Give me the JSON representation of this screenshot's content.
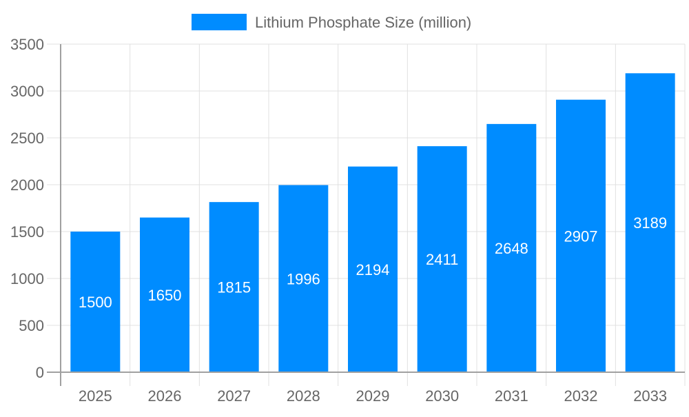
{
  "chart_data": {
    "type": "bar",
    "title": "",
    "xlabel": "",
    "ylabel": "",
    "categories": [
      "2025",
      "2026",
      "2027",
      "2028",
      "2029",
      "2030",
      "2031",
      "2032",
      "2033"
    ],
    "series": [
      {
        "name": "Lithium Phosphate Size (million)",
        "values": [
          1500,
          1650,
          1815,
          1996,
          2194,
          2411,
          2648,
          2907,
          3189
        ],
        "color": "#008cff"
      }
    ],
    "ylim": [
      0,
      3500
    ],
    "yticks": [
      0,
      500,
      1000,
      1500,
      2000,
      2500,
      3000,
      3500
    ],
    "grid": true,
    "legend": "top-center",
    "data_labels": true
  }
}
